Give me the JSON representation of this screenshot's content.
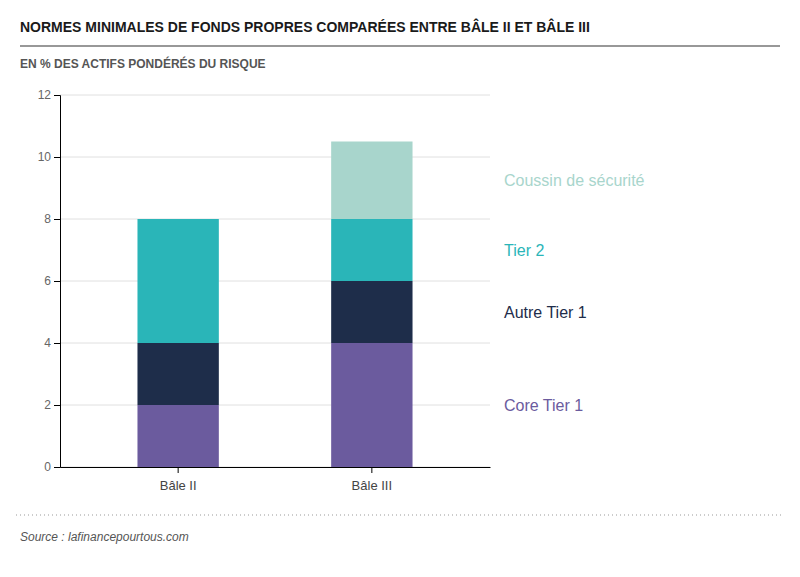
{
  "chart_data": {
    "type": "bar",
    "stacked": true,
    "title": "NORMES MINIMALES DE FONDS PROPRES COMPARÉES ENTRE BÂLE II ET BÂLE III",
    "subtitle": "EN % DES ACTIFS PONDÉRÉS DU RISQUE",
    "source": "Source : lafinancepourtous.com",
    "categories": [
      "Bâle II",
      "Bâle III"
    ],
    "series": [
      {
        "name": "Core Tier 1",
        "color": "#6b5b9e",
        "values": [
          2.0,
          4.0
        ]
      },
      {
        "name": "Autre Tier 1",
        "color": "#1e2d4a",
        "values": [
          2.0,
          2.0
        ]
      },
      {
        "name": "Tier 2",
        "color": "#2ab5b8",
        "values": [
          4.0,
          2.0
        ]
      },
      {
        "name": "Coussin de sécurité",
        "color": "#a8d5cc",
        "values": [
          0.0,
          2.5
        ]
      }
    ],
    "ylim": [
      0,
      12
    ],
    "yticks": [
      0,
      2,
      4,
      6,
      8,
      10,
      12
    ],
    "grid": true,
    "legend": "right"
  }
}
